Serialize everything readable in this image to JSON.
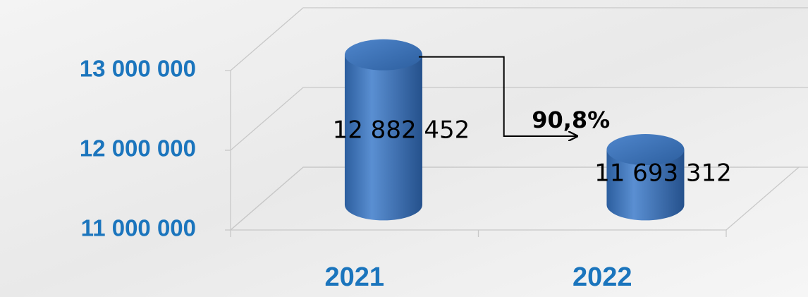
{
  "chart_data": {
    "type": "bar3d",
    "categories": [
      "2021",
      "2022"
    ],
    "values": [
      12882452,
      11693312
    ],
    "value_labels": [
      "12 882 452",
      "11 693 312"
    ],
    "color": "#3f74b8",
    "ylim": [
      11000000,
      13000000
    ],
    "yticks": [
      {
        "value": 11000000,
        "label": "11 000 000"
      },
      {
        "value": 12000000,
        "label": "12 000 000"
      },
      {
        "value": 13000000,
        "label": "13 000 000"
      }
    ],
    "grid": true,
    "annotation": "90,8%"
  }
}
